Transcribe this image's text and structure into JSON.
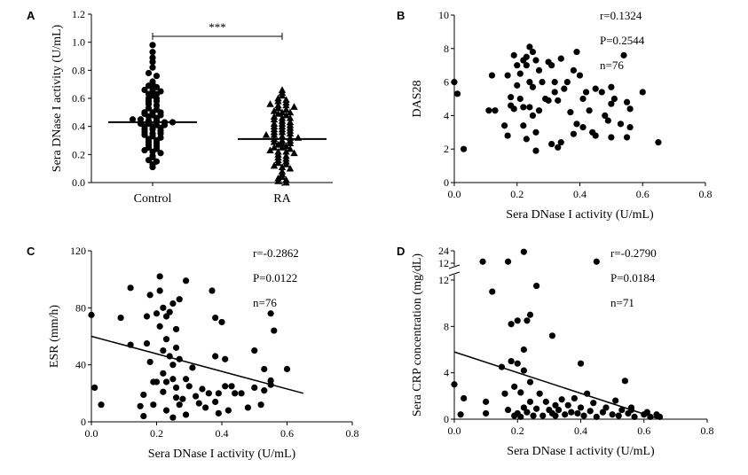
{
  "chart_data": [
    {
      "panel": "A",
      "type": "scatter",
      "ylabel": "Sera DNase I activity (U/mL)",
      "ylim": [
        0,
        1.2
      ],
      "yticks": [
        "0.0",
        "0.2",
        "0.4",
        "0.6",
        "0.8",
        "1.0",
        "1.2"
      ],
      "categories": [
        "Control",
        "RA"
      ],
      "significance": "***",
      "series": [
        {
          "category": "Control",
          "marker": "circle",
          "mean": 0.43,
          "values": [
            0.98,
            0.93,
            0.89,
            0.86,
            0.82,
            0.78,
            0.76,
            0.72,
            0.7,
            0.69,
            0.68,
            0.66,
            0.66,
            0.65,
            0.63,
            0.63,
            0.62,
            0.6,
            0.6,
            0.58,
            0.58,
            0.56,
            0.55,
            0.53,
            0.52,
            0.5,
            0.5,
            0.5,
            0.49,
            0.48,
            0.48,
            0.47,
            0.46,
            0.45,
            0.45,
            0.44,
            0.44,
            0.43,
            0.43,
            0.42,
            0.42,
            0.41,
            0.41,
            0.4,
            0.4,
            0.39,
            0.38,
            0.38,
            0.37,
            0.36,
            0.35,
            0.35,
            0.34,
            0.33,
            0.32,
            0.31,
            0.3,
            0.29,
            0.28,
            0.27,
            0.26,
            0.25,
            0.24,
            0.23,
            0.22,
            0.21,
            0.19,
            0.18,
            0.16,
            0.15,
            0.13,
            0.11
          ]
        },
        {
          "category": "RA",
          "marker": "triangle",
          "mean": 0.31,
          "values": [
            0.66,
            0.64,
            0.62,
            0.6,
            0.59,
            0.58,
            0.57,
            0.56,
            0.55,
            0.55,
            0.54,
            0.53,
            0.52,
            0.51,
            0.5,
            0.5,
            0.49,
            0.48,
            0.47,
            0.46,
            0.46,
            0.45,
            0.44,
            0.43,
            0.42,
            0.42,
            0.41,
            0.4,
            0.4,
            0.39,
            0.38,
            0.38,
            0.37,
            0.36,
            0.36,
            0.35,
            0.34,
            0.34,
            0.33,
            0.32,
            0.32,
            0.31,
            0.3,
            0.3,
            0.29,
            0.28,
            0.28,
            0.27,
            0.26,
            0.25,
            0.25,
            0.24,
            0.23,
            0.22,
            0.22,
            0.21,
            0.2,
            0.19,
            0.18,
            0.17,
            0.16,
            0.15,
            0.14,
            0.13,
            0.12,
            0.11,
            0.1,
            0.08,
            0.06,
            0.04,
            0.03,
            0.02,
            0.01,
            0.0
          ]
        }
      ]
    },
    {
      "panel": "B",
      "type": "scatter",
      "xlabel": "Sera DNase I activity (U/mL)",
      "ylabel": "DAS28",
      "xlim": [
        0,
        0.8
      ],
      "ylim": [
        0,
        10
      ],
      "xticks": [
        "0.0",
        "0.2",
        "0.4",
        "0.6",
        "0.8"
      ],
      "yticks": [
        "0",
        "2",
        "4",
        "6",
        "8",
        "10"
      ],
      "stats": {
        "r": "r=0.1324",
        "p": "P=0.2544",
        "n": "n=76"
      },
      "points": [
        [
          0.0,
          6.0
        ],
        [
          0.01,
          5.3
        ],
        [
          0.03,
          2.0
        ],
        [
          0.11,
          4.3
        ],
        [
          0.12,
          6.4
        ],
        [
          0.13,
          4.3
        ],
        [
          0.16,
          3.4
        ],
        [
          0.17,
          6.4
        ],
        [
          0.17,
          2.8
        ],
        [
          0.18,
          4.6
        ],
        [
          0.18,
          5.1
        ],
        [
          0.19,
          4.4
        ],
        [
          0.19,
          7.6
        ],
        [
          0.2,
          7.0
        ],
        [
          0.2,
          5.8
        ],
        [
          0.21,
          6.5
        ],
        [
          0.21,
          5.0
        ],
        [
          0.22,
          7.3
        ],
        [
          0.22,
          4.5
        ],
        [
          0.22,
          3.4
        ],
        [
          0.23,
          7.5
        ],
        [
          0.23,
          2.6
        ],
        [
          0.23,
          7.0
        ],
        [
          0.24,
          8.1
        ],
        [
          0.24,
          6.0
        ],
        [
          0.24,
          4.5
        ],
        [
          0.25,
          7.8
        ],
        [
          0.25,
          5.7
        ],
        [
          0.25,
          4.0
        ],
        [
          0.26,
          3.0
        ],
        [
          0.26,
          7.3
        ],
        [
          0.26,
          1.9
        ],
        [
          0.27,
          6.7
        ],
        [
          0.27,
          4.3
        ],
        [
          0.28,
          6.0
        ],
        [
          0.29,
          5.0
        ],
        [
          0.3,
          7.2
        ],
        [
          0.3,
          4.9
        ],
        [
          0.31,
          7.0
        ],
        [
          0.31,
          2.3
        ],
        [
          0.32,
          6.0
        ],
        [
          0.32,
          5.4
        ],
        [
          0.33,
          2.1
        ],
        [
          0.33,
          4.9
        ],
        [
          0.34,
          7.4
        ],
        [
          0.34,
          2.4
        ],
        [
          0.35,
          5.6
        ],
        [
          0.36,
          6.0
        ],
        [
          0.37,
          4.2
        ],
        [
          0.38,
          6.7
        ],
        [
          0.38,
          2.9
        ],
        [
          0.39,
          7.8
        ],
        [
          0.39,
          3.5
        ],
        [
          0.4,
          6.4
        ],
        [
          0.41,
          5.0
        ],
        [
          0.41,
          3.3
        ],
        [
          0.42,
          5.4
        ],
        [
          0.43,
          4.3
        ],
        [
          0.44,
          3.0
        ],
        [
          0.45,
          5.6
        ],
        [
          0.45,
          2.8
        ],
        [
          0.47,
          5.4
        ],
        [
          0.48,
          4.0
        ],
        [
          0.49,
          3.7
        ],
        [
          0.5,
          5.7
        ],
        [
          0.5,
          4.7
        ],
        [
          0.5,
          2.7
        ],
        [
          0.51,
          5.0
        ],
        [
          0.53,
          3.5
        ],
        [
          0.54,
          7.6
        ],
        [
          0.55,
          2.7
        ],
        [
          0.55,
          4.8
        ],
        [
          0.56,
          4.4
        ],
        [
          0.56,
          3.3
        ],
        [
          0.6,
          5.4
        ],
        [
          0.65,
          2.4
        ]
      ]
    },
    {
      "panel": "C",
      "type": "scatter",
      "xlabel": "Sera DNase I activity (U/mL)",
      "ylabel": "ESR (mm/h)",
      "xlim": [
        0,
        0.8
      ],
      "ylim": [
        0,
        120
      ],
      "xticks": [
        "0.0",
        "0.2",
        "0.4",
        "0.6",
        "0.8"
      ],
      "yticks": [
        "0",
        "40",
        "80",
        "120"
      ],
      "stats": {
        "r": "r=-0.2862",
        "p": "P=0.0122",
        "n": "n=76"
      },
      "regression": [
        [
          0.0,
          60
        ],
        [
          0.65,
          20
        ]
      ],
      "points": [
        [
          0.0,
          75
        ],
        [
          0.01,
          24
        ],
        [
          0.03,
          12
        ],
        [
          0.09,
          73
        ],
        [
          0.12,
          94
        ],
        [
          0.12,
          54
        ],
        [
          0.15,
          11
        ],
        [
          0.16,
          19
        ],
        [
          0.16,
          4
        ],
        [
          0.17,
          74
        ],
        [
          0.17,
          55
        ],
        [
          0.18,
          42
        ],
        [
          0.18,
          89
        ],
        [
          0.19,
          28
        ],
        [
          0.19,
          12
        ],
        [
          0.2,
          76
        ],
        [
          0.2,
          28
        ],
        [
          0.21,
          92
        ],
        [
          0.21,
          67
        ],
        [
          0.21,
          102
        ],
        [
          0.22,
          80
        ],
        [
          0.22,
          50
        ],
        [
          0.22,
          34
        ],
        [
          0.22,
          21
        ],
        [
          0.23,
          74
        ],
        [
          0.23,
          58
        ],
        [
          0.23,
          28
        ],
        [
          0.23,
          8
        ],
        [
          0.24,
          77
        ],
        [
          0.24,
          46
        ],
        [
          0.25,
          83
        ],
        [
          0.25,
          40
        ],
        [
          0.25,
          30
        ],
        [
          0.25,
          3
        ],
        [
          0.26,
          65
        ],
        [
          0.26,
          52
        ],
        [
          0.26,
          24
        ],
        [
          0.26,
          17
        ],
        [
          0.27,
          86
        ],
        [
          0.27,
          44
        ],
        [
          0.27,
          12
        ],
        [
          0.28,
          16
        ],
        [
          0.29,
          99
        ],
        [
          0.29,
          30
        ],
        [
          0.29,
          5
        ],
        [
          0.3,
          25
        ],
        [
          0.31,
          38
        ],
        [
          0.32,
          18
        ],
        [
          0.33,
          13
        ],
        [
          0.34,
          23
        ],
        [
          0.35,
          10
        ],
        [
          0.36,
          20
        ],
        [
          0.37,
          92
        ],
        [
          0.38,
          73
        ],
        [
          0.38,
          46
        ],
        [
          0.38,
          14
        ],
        [
          0.39,
          20
        ],
        [
          0.39,
          6
        ],
        [
          0.4,
          70
        ],
        [
          0.41,
          44
        ],
        [
          0.41,
          25
        ],
        [
          0.42,
          8
        ],
        [
          0.43,
          25
        ],
        [
          0.44,
          20
        ],
        [
          0.46,
          20
        ],
        [
          0.48,
          10
        ],
        [
          0.5,
          50
        ],
        [
          0.5,
          24
        ],
        [
          0.52,
          12
        ],
        [
          0.53,
          22
        ],
        [
          0.53,
          37
        ],
        [
          0.55,
          29
        ],
        [
          0.55,
          76
        ],
        [
          0.55,
          26
        ],
        [
          0.56,
          64
        ],
        [
          0.6,
          37
        ]
      ]
    },
    {
      "panel": "D",
      "type": "scatter",
      "xlabel": "Sera DNase I activity (U/mL)",
      "ylabel": "Sera CRP concentration (mg/dL)",
      "xlim": [
        0,
        0.8
      ],
      "ylim": [
        0,
        24
      ],
      "axis_break": [
        12,
        14
      ],
      "xticks": [
        "0.0",
        "0.2",
        "0.4",
        "0.6",
        "0.8"
      ],
      "yticks": [
        "0",
        "4",
        "8",
        "12",
        "12",
        "24"
      ],
      "stats": {
        "r": "r=-0.2790",
        "p": "P=0.0184",
        "n": "n=71"
      },
      "regression": [
        [
          0.0,
          5.8
        ],
        [
          0.65,
          0.0
        ]
      ],
      "points": [
        [
          0.0,
          3.0
        ],
        [
          0.02,
          0.4
        ],
        [
          0.03,
          1.8
        ],
        [
          0.09,
          13.5
        ],
        [
          0.1,
          1.5
        ],
        [
          0.1,
          0.5
        ],
        [
          0.12,
          11.0
        ],
        [
          0.15,
          4.5
        ],
        [
          0.16,
          2.2
        ],
        [
          0.17,
          13.5
        ],
        [
          0.17,
          0.8
        ],
        [
          0.18,
          5.0
        ],
        [
          0.18,
          8.2
        ],
        [
          0.19,
          2.8
        ],
        [
          0.19,
          0.3
        ],
        [
          0.2,
          4.8
        ],
        [
          0.2,
          8.5
        ],
        [
          0.2,
          0.5
        ],
        [
          0.21,
          2.3
        ],
        [
          0.21,
          0.2
        ],
        [
          0.22,
          23.0
        ],
        [
          0.22,
          6.0
        ],
        [
          0.22,
          1.0
        ],
        [
          0.22,
          4.2
        ],
        [
          0.23,
          8.5
        ],
        [
          0.23,
          0.6
        ],
        [
          0.24,
          3.2
        ],
        [
          0.24,
          9.0
        ],
        [
          0.24,
          1.5
        ],
        [
          0.25,
          0.3
        ],
        [
          0.26,
          11.5
        ],
        [
          0.26,
          0.9
        ],
        [
          0.27,
          2.2
        ],
        [
          0.28,
          0.3
        ],
        [
          0.29,
          1.5
        ],
        [
          0.3,
          0.8
        ],
        [
          0.31,
          7.2
        ],
        [
          0.31,
          0.5
        ],
        [
          0.32,
          1.2
        ],
        [
          0.32,
          0.3
        ],
        [
          0.33,
          0.8
        ],
        [
          0.34,
          1.7
        ],
        [
          0.35,
          0.4
        ],
        [
          0.36,
          1.2
        ],
        [
          0.37,
          0.6
        ],
        [
          0.38,
          1.8
        ],
        [
          0.39,
          0.5
        ],
        [
          0.4,
          4.8
        ],
        [
          0.4,
          1.0
        ],
        [
          0.41,
          0.3
        ],
        [
          0.42,
          2.2
        ],
        [
          0.43,
          0.7
        ],
        [
          0.44,
          1.4
        ],
        [
          0.45,
          0.2
        ],
        [
          0.45,
          13.5
        ],
        [
          0.47,
          0.6
        ],
        [
          0.48,
          1.0
        ],
        [
          0.5,
          0.4
        ],
        [
          0.51,
          1.6
        ],
        [
          0.52,
          0.3
        ],
        [
          0.53,
          0.8
        ],
        [
          0.54,
          3.3
        ],
        [
          0.55,
          0.5
        ],
        [
          0.56,
          1.0
        ],
        [
          0.57,
          0.2
        ],
        [
          0.6,
          0.4
        ],
        [
          0.61,
          0.6
        ],
        [
          0.62,
          0.2
        ],
        [
          0.64,
          0.4
        ],
        [
          0.65,
          0.2
        ],
        [
          0.56,
          0.8
        ]
      ]
    }
  ]
}
